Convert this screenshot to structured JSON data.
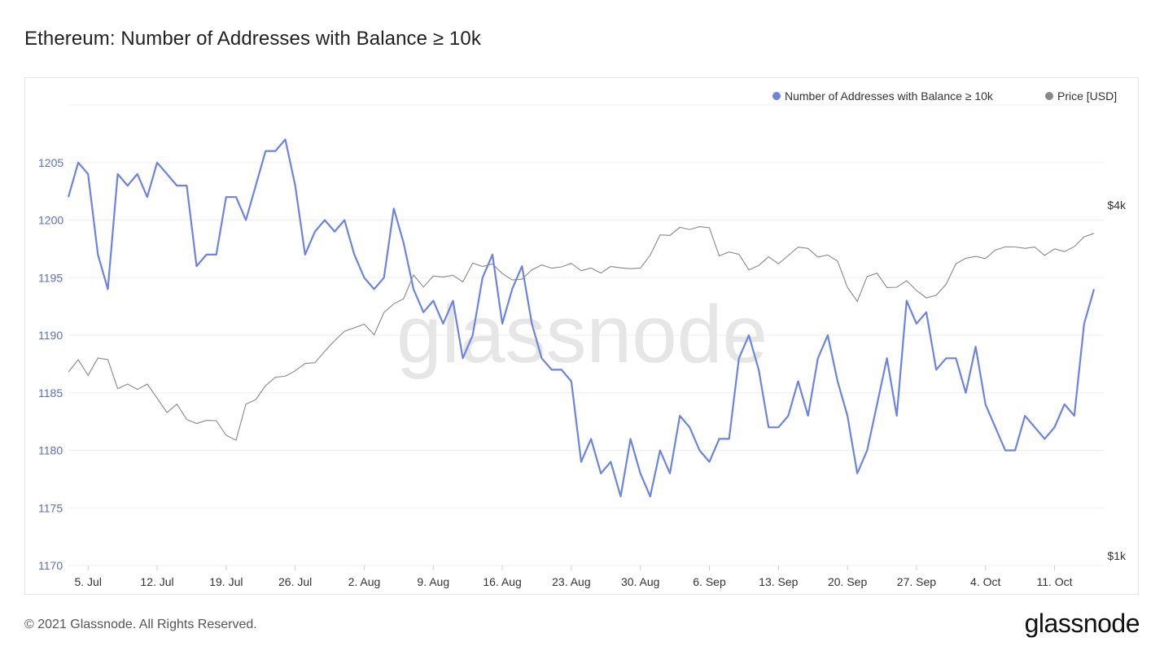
{
  "header": {
    "title": "Ethereum: Number of Addresses with Balance ≥ 10k"
  },
  "footer": {
    "copyright": "© 2021 Glassnode. All Rights Reserved.",
    "brand": "glassnode"
  },
  "watermark": "glassnode",
  "colors": {
    "addresses": "#6b83e3",
    "price": "#888888",
    "grid": "#efefef",
    "axis_text_left": "#5a6fc7",
    "axis_text": "#333333"
  },
  "chart_data": {
    "type": "line",
    "title": "Ethereum: Number of Addresses with Balance ≥ 10k",
    "legend_position": "top-right",
    "grid": true,
    "x_ticks": [
      "5. Jul",
      "12. Jul",
      "19. Jul",
      "26. Jul",
      "2. Aug",
      "9. Aug",
      "16. Aug",
      "23. Aug",
      "30. Aug",
      "6. Sep",
      "13. Sep",
      "20. Sep",
      "27. Sep",
      "4. Oct",
      "11. Oct"
    ],
    "y_left": {
      "ticks": [
        1170,
        1175,
        1180,
        1185,
        1190,
        1195,
        1200,
        1205
      ],
      "range": [
        1170,
        1208.7
      ]
    },
    "y_right": {
      "ticks": [
        "$1k",
        "$4k"
      ],
      "scale": "log",
      "range_usd": [
        1000,
        4000
      ]
    },
    "series": [
      {
        "name": "Number of Addresses with Balance ≥ 10k",
        "axis": "left",
        "values": [
          1202,
          1205,
          1204,
          1197,
          1194,
          1204,
          1203,
          1204,
          1202,
          1205,
          1204,
          1203,
          1203,
          1196,
          1197,
          1197,
          1202,
          1202,
          1200,
          1203,
          1206,
          1206,
          1207,
          1203,
          1197,
          1199,
          1200,
          1199,
          1200,
          1197,
          1195,
          1194,
          1195,
          1201,
          1198,
          1194,
          1192,
          1193,
          1191,
          1193,
          1188,
          1190,
          1195,
          1197,
          1191,
          1194,
          1196,
          1191,
          1188,
          1187,
          1187,
          1186,
          1179,
          1181,
          1178,
          1179,
          1176,
          1181,
          1178,
          1176,
          1180,
          1178,
          1183,
          1182,
          1180,
          1179,
          1181,
          1181,
          1188,
          1190,
          1187,
          1182,
          1182,
          1183,
          1186,
          1183,
          1188,
          1190,
          1186,
          1183,
          1178,
          1180,
          1184,
          1188,
          1183,
          1193,
          1191,
          1192,
          1187,
          1188,
          1188,
          1185,
          1189,
          1184,
          1182,
          1180,
          1180,
          1183,
          1182,
          1181,
          1182,
          1184,
          1183,
          1191,
          1194
        ]
      },
      {
        "name": "Price [USD]",
        "axis": "right",
        "values": [
          2152,
          2260,
          2124,
          2275,
          2261,
          2015,
          2052,
          2009,
          2052,
          1941,
          1834,
          1895,
          1783,
          1755,
          1777,
          1775,
          1675,
          1643,
          1896,
          1929,
          2040,
          2109,
          2117,
          2163,
          2227,
          2234,
          2338,
          2437,
          2530,
          2564,
          2602,
          2494,
          2725,
          2820,
          2878,
          3162,
          3015,
          3149,
          3137,
          3158,
          3077,
          3314,
          3270,
          3303,
          3180,
          3100,
          3110,
          3227,
          3290,
          3248,
          3265,
          3310,
          3215,
          3250,
          3186,
          3270,
          3252,
          3242,
          3248,
          3420,
          3706,
          3698,
          3819,
          3786,
          3829,
          3812,
          3410,
          3463,
          3432,
          3226,
          3283,
          3398,
          3304,
          3416,
          3531,
          3513,
          3395,
          3422,
          3340,
          3010,
          2849,
          3143,
          3184,
          3008,
          3012,
          3091,
          2973,
          2887,
          2917,
          3048,
          3306,
          3378,
          3403,
          3374,
          3491,
          3534,
          3533,
          3514,
          3531,
          3417,
          3506,
          3469,
          3538,
          3678,
          3729
        ]
      }
    ]
  }
}
